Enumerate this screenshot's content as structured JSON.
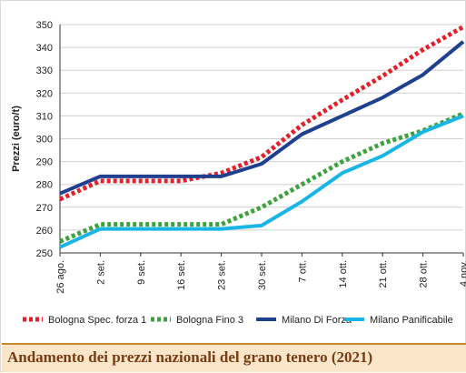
{
  "caption": "Andamento dei prezzi nazionali del grano tenero (2021)",
  "chart_data": {
    "type": "line",
    "title": "",
    "xlabel": "",
    "ylabel": "Prezzi (euro/t)",
    "ylim": [
      250,
      350
    ],
    "yticks": [
      250,
      260,
      270,
      280,
      290,
      300,
      310,
      320,
      330,
      340,
      350
    ],
    "categories": [
      "26 ago.",
      "2 set.",
      "9 set.",
      "16 set.",
      "23 set.",
      "30 set.",
      "7 ott.",
      "14 ott.",
      "21 ott.",
      "28 ott.",
      "4 nov."
    ],
    "grid": "horizontal",
    "legend_position": "bottom",
    "series": [
      {
        "name": "Bologna Spec. forza 1",
        "color": "#e3202a",
        "style": "dotted",
        "values": [
          273.5,
          281.5,
          281.5,
          281.5,
          285,
          292,
          306,
          317,
          327.5,
          339,
          349
        ]
      },
      {
        "name": "Bologna Fino 3",
        "color": "#3da23e",
        "style": "dotted",
        "values": [
          255,
          262.5,
          262.5,
          262.5,
          262.5,
          270,
          280,
          290,
          298,
          303.5,
          311
        ]
      },
      {
        "name": "Milano Di Forza",
        "color": "#1f3f8f",
        "style": "solid",
        "values": [
          276,
          283.5,
          283.5,
          283.5,
          283.5,
          289,
          302,
          310,
          318,
          328,
          342.5
        ]
      },
      {
        "name": "Milano Panificabile",
        "color": "#19b5e6",
        "style": "solid",
        "values": [
          252.5,
          260.5,
          260.5,
          260.5,
          260.5,
          262,
          272.5,
          285,
          292.5,
          303,
          310
        ]
      }
    ]
  }
}
